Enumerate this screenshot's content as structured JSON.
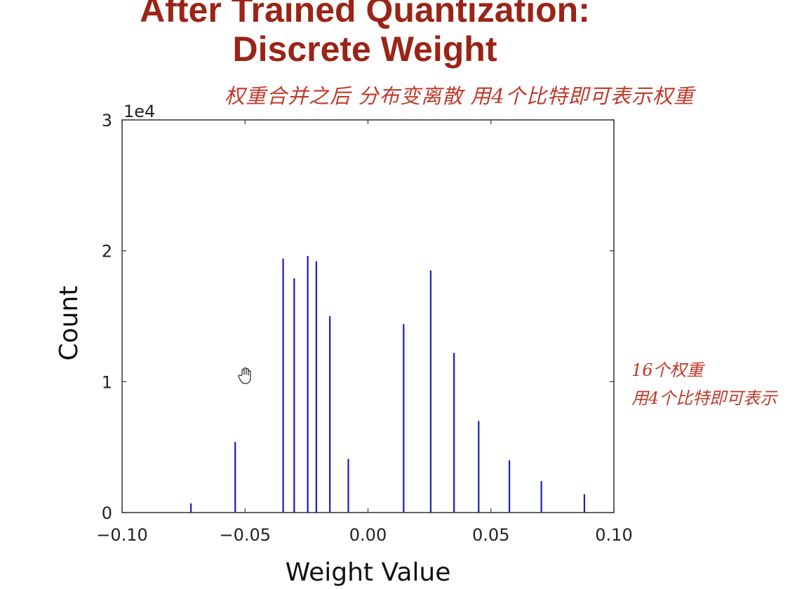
{
  "slide": {
    "title_line1": "After Trained Quantization:",
    "title_line2": "Discrete Weight"
  },
  "annotations": {
    "top_note": "权重合并之后 分布变离散 用4个比特即可表示权重",
    "right_note_line1": "16个权重",
    "right_note_line2": "用4个比特即可表示"
  },
  "colors": {
    "title": "#9b2416",
    "handwriting": "#c0392b",
    "bars": "#1a1acc",
    "axes": "#333333"
  },
  "chart_data": {
    "type": "bar",
    "xlabel": "Weight Value",
    "ylabel": "Count",
    "y_offset_text": "1e4",
    "xlim": [
      -0.1,
      0.1
    ],
    "ylim": [
      0,
      3
    ],
    "xticks": [
      -0.1,
      -0.05,
      0.0,
      0.05,
      0.1
    ],
    "xtick_labels": [
      "−0.10",
      "−0.05",
      "0.00",
      "0.05",
      "0.10"
    ],
    "yticks": [
      0,
      1,
      2,
      3
    ],
    "ytick_labels": [
      "0",
      "1",
      "2",
      "3"
    ],
    "grid": false,
    "x": [
      -0.072,
      -0.054,
      -0.0345,
      -0.03,
      -0.0245,
      -0.021,
      -0.0155,
      -0.008,
      0.0145,
      0.0255,
      0.035,
      0.045,
      0.0575,
      0.0705,
      0.088
    ],
    "values": [
      0.07,
      0.54,
      1.94,
      1.79,
      1.96,
      1.92,
      1.5,
      0.41,
      1.44,
      1.85,
      1.22,
      0.7,
      0.4,
      0.24,
      0.14
    ]
  },
  "icons": {
    "cursor": "hand-cursor-icon"
  }
}
